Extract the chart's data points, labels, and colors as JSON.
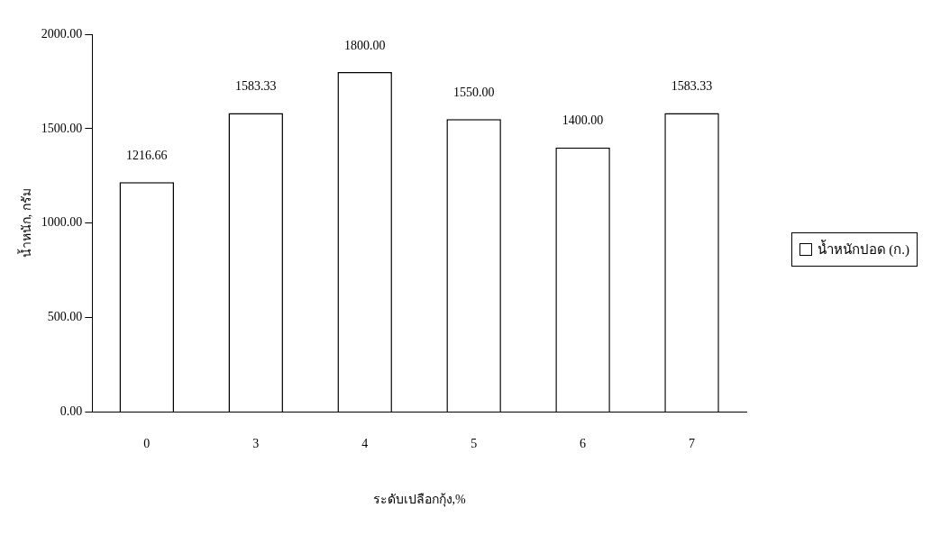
{
  "chart_data": {
    "type": "bar",
    "categories": [
      "0",
      "3",
      "4",
      "5",
      "6",
      "7"
    ],
    "series": [
      {
        "name": "น้ำหนักปอด (ก.)",
        "color": "#ffffff",
        "values": [
          1216.66,
          1583.33,
          1800,
          1550,
          1400,
          1583.33
        ],
        "value_labels": [
          "1216.66",
          "1583.33",
          "1800.00",
          "1550.00",
          "1400.00",
          "1583.33"
        ]
      }
    ],
    "ylim": [
      0,
      2000
    ],
    "yticks": [
      {
        "value": 0,
        "label": "0.00"
      },
      {
        "value": 500,
        "label": "500.00"
      },
      {
        "value": 1000,
        "label": "1000.00"
      },
      {
        "value": 1500,
        "label": "1500.00"
      },
      {
        "value": 2000,
        "label": "2000.00"
      }
    ],
    "xlabel": "ระดับเปลือกกุ้ง,%",
    "ylabel": "น้ำหนัก, กรัม",
    "grid": false,
    "legend": "right"
  }
}
